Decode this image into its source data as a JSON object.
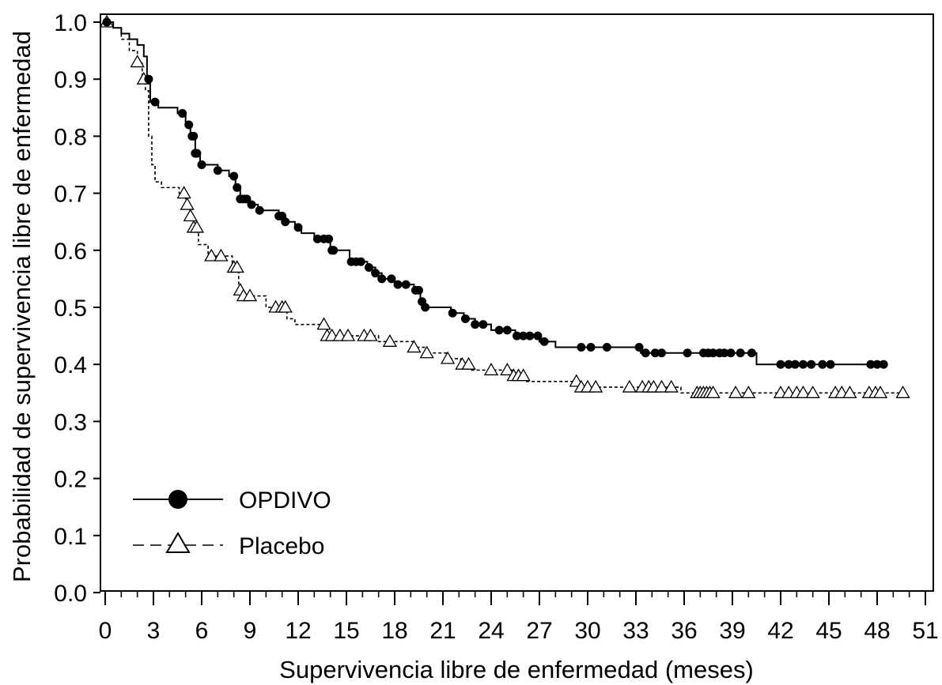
{
  "chart_data": {
    "type": "line",
    "subtype": "kaplan-meier",
    "title": "",
    "xlabel": "Supervivencia libre de enfermedad (meses)",
    "ylabel": "Probabilidad de supervivencia libre de enfermedad",
    "xlim": [
      0,
      51
    ],
    "ylim": [
      0,
      1
    ],
    "x_ticks": [
      0,
      3,
      6,
      9,
      12,
      15,
      18,
      21,
      24,
      27,
      30,
      33,
      36,
      39,
      42,
      45,
      48,
      51
    ],
    "x_tick_labels": [
      "0",
      "3",
      "6",
      "9",
      "12",
      "15",
      "18",
      "21",
      "24",
      "27",
      "30",
      "33",
      "36",
      "39",
      "42",
      "45",
      "48",
      "51"
    ],
    "y_ticks": [
      0,
      0.1,
      0.2,
      0.3,
      0.4,
      0.5,
      0.6,
      0.7,
      0.8,
      0.9,
      1.0
    ],
    "y_tick_labels": [
      "0.0",
      "0.1",
      "0.2",
      "0.3",
      "0.4",
      "0.5",
      "0.6",
      "0.7",
      "0.8",
      "0.9",
      "1.0"
    ],
    "minor_x_tick_step": 1,
    "grid": false,
    "legend_position": "bottom-left",
    "series": [
      {
        "name": "OPDIVO",
        "line_style": "solid",
        "marker": "filled-circle",
        "color": "#000000",
        "steps": [
          [
            0,
            1.0
          ],
          [
            0.5,
            0.99
          ],
          [
            1.0,
            0.98
          ],
          [
            1.5,
            0.97
          ],
          [
            2.0,
            0.96
          ],
          [
            2.4,
            0.94
          ],
          [
            2.6,
            0.9
          ],
          [
            2.8,
            0.86
          ],
          [
            3.3,
            0.85
          ],
          [
            4.5,
            0.84
          ],
          [
            5.0,
            0.82
          ],
          [
            5.3,
            0.8
          ],
          [
            5.6,
            0.77
          ],
          [
            5.9,
            0.75
          ],
          [
            7.0,
            0.74
          ],
          [
            7.7,
            0.73
          ],
          [
            8.1,
            0.71
          ],
          [
            8.4,
            0.69
          ],
          [
            9.0,
            0.68
          ],
          [
            9.5,
            0.67
          ],
          [
            10.8,
            0.66
          ],
          [
            11.2,
            0.65
          ],
          [
            11.8,
            0.64
          ],
          [
            12.2,
            0.63
          ],
          [
            13.0,
            0.62
          ],
          [
            14.0,
            0.6
          ],
          [
            15.2,
            0.58
          ],
          [
            16.3,
            0.57
          ],
          [
            16.8,
            0.56
          ],
          [
            17.2,
            0.55
          ],
          [
            18.0,
            0.54
          ],
          [
            19.2,
            0.53
          ],
          [
            19.6,
            0.51
          ],
          [
            19.8,
            0.5
          ],
          [
            21.5,
            0.49
          ],
          [
            22.3,
            0.48
          ],
          [
            23.0,
            0.47
          ],
          [
            24.0,
            0.46
          ],
          [
            25.5,
            0.45
          ],
          [
            27.0,
            0.44
          ],
          [
            28.0,
            0.43
          ],
          [
            33.3,
            0.42
          ],
          [
            40.5,
            0.4
          ],
          [
            48.3,
            0.4
          ]
        ],
        "censor_x": [
          0.1,
          2.7,
          3.1,
          4.8,
          5.2,
          5.4,
          5.5,
          5.6,
          5.7,
          6.0,
          7.0,
          8.0,
          8.2,
          8.4,
          8.6,
          8.8,
          9.1,
          9.6,
          10.8,
          11.0,
          11.2,
          12.0,
          13.2,
          13.6,
          13.9,
          14.1,
          14.2,
          15.3,
          15.6,
          15.9,
          16.4,
          16.8,
          17.2,
          17.8,
          18.2,
          18.7,
          19.3,
          19.5,
          19.7,
          19.9,
          21.6,
          22.4,
          23.0,
          23.5,
          24.5,
          25.0,
          25.6,
          26.0,
          26.4,
          26.9,
          27.3,
          29.6,
          30.2,
          31.2,
          33.2,
          33.6,
          34.2,
          34.6,
          36.2,
          37.2,
          37.5,
          37.8,
          38.2,
          38.5,
          38.9,
          39.5,
          40.2,
          42.0,
          42.5,
          42.9,
          43.4,
          43.9,
          44.6,
          45.1,
          47.6,
          48.0,
          48.4
        ]
      },
      {
        "name": "Placebo",
        "line_style": "dashed",
        "marker": "open-triangle",
        "color": "#000000",
        "steps": [
          [
            0,
            1.0
          ],
          [
            0.5,
            0.99
          ],
          [
            1.0,
            0.97
          ],
          [
            1.5,
            0.95
          ],
          [
            2.0,
            0.93
          ],
          [
            2.3,
            0.9
          ],
          [
            2.5,
            0.88
          ],
          [
            2.7,
            0.8
          ],
          [
            2.9,
            0.75
          ],
          [
            3.1,
            0.72
          ],
          [
            3.5,
            0.71
          ],
          [
            4.6,
            0.7
          ],
          [
            5.0,
            0.68
          ],
          [
            5.3,
            0.66
          ],
          [
            5.5,
            0.64
          ],
          [
            5.8,
            0.61
          ],
          [
            6.4,
            0.59
          ],
          [
            7.9,
            0.57
          ],
          [
            8.3,
            0.53
          ],
          [
            8.6,
            0.52
          ],
          [
            10.0,
            0.5
          ],
          [
            11.3,
            0.48
          ],
          [
            11.8,
            0.47
          ],
          [
            13.8,
            0.45
          ],
          [
            17.0,
            0.44
          ],
          [
            19.2,
            0.43
          ],
          [
            20.0,
            0.42
          ],
          [
            21.2,
            0.41
          ],
          [
            22.1,
            0.4
          ],
          [
            22.7,
            0.39
          ],
          [
            25.1,
            0.39
          ],
          [
            25.4,
            0.38
          ],
          [
            26.2,
            0.37
          ],
          [
            29.5,
            0.36
          ],
          [
            35.8,
            0.35
          ],
          [
            49.6,
            0.35
          ]
        ],
        "censor_x": [
          0.1,
          2.0,
          2.4,
          4.9,
          5.1,
          5.3,
          5.5,
          5.7,
          6.6,
          7.2,
          8.0,
          8.2,
          8.4,
          8.6,
          9.0,
          10.6,
          11.0,
          11.2,
          13.6,
          13.8,
          14.1,
          14.6,
          15.1,
          16.1,
          16.5,
          17.7,
          19.2,
          20.0,
          21.3,
          22.2,
          22.6,
          24.0,
          25.0,
          25.4,
          25.7,
          26.0,
          29.3,
          29.6,
          30.0,
          30.5,
          32.6,
          33.4,
          33.8,
          34.1,
          34.6,
          35.2,
          36.8,
          37.0,
          37.2,
          37.4,
          37.6,
          37.8,
          39.2,
          40.0,
          42.0,
          42.5,
          43.0,
          43.4,
          44.0,
          45.4,
          45.8,
          46.3,
          47.5,
          47.9,
          48.2,
          49.6
        ]
      }
    ]
  }
}
